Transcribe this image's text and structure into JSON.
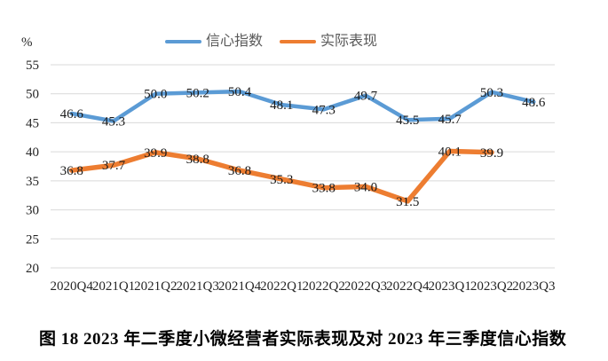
{
  "figure": {
    "caption": "图 18  2023 年二季度小微经营者实际表现及对 2023 年三季度信心指数"
  },
  "legend": [
    {
      "label": "信心指数",
      "color": "#5B9BD5"
    },
    {
      "label": "实际表现",
      "color": "#ED7D31"
    }
  ],
  "colors": {
    "gridline": "#D9D9D9",
    "tick_text": "#262626",
    "data_label_text": "#1A1A1A",
    "confidence_blue": "#5B9BD5",
    "performance_orange": "#ED7D31"
  },
  "chart_data": {
    "type": "line",
    "title": "图 18  2023 年二季度小微经营者实际表现及对 2023 年三季度信心指数",
    "categories": [
      "2020Q4",
      "2021Q1",
      "2021Q2",
      "2021Q3",
      "2021Q4",
      "2022Q1",
      "2022Q2",
      "2022Q3",
      "2022Q4",
      "2023Q1",
      "2023Q2",
      "2023Q3"
    ],
    "series": [
      {
        "name": "信心指数",
        "id": "confidence-index-line",
        "color": "#5B9BD5",
        "values": [
          46.6,
          45.3,
          50.0,
          50.2,
          50.4,
          48.1,
          47.3,
          49.7,
          45.5,
          45.7,
          50.3,
          48.6
        ]
      },
      {
        "name": "实际表现",
        "id": "actual-performance-line",
        "color": "#ED7D31",
        "values": [
          36.8,
          37.7,
          39.9,
          38.8,
          36.8,
          35.3,
          33.8,
          34.0,
          31.5,
          40.1,
          39.9,
          null
        ]
      }
    ],
    "ylabel": "%",
    "ylim": [
      20,
      55
    ],
    "yticks": [
      55,
      50,
      45,
      40,
      35,
      30,
      25,
      20
    ],
    "xlabel": "",
    "grid": "horizontal",
    "legend_position": "top",
    "data_label_position": "center",
    "data_label_format": "0.0"
  }
}
